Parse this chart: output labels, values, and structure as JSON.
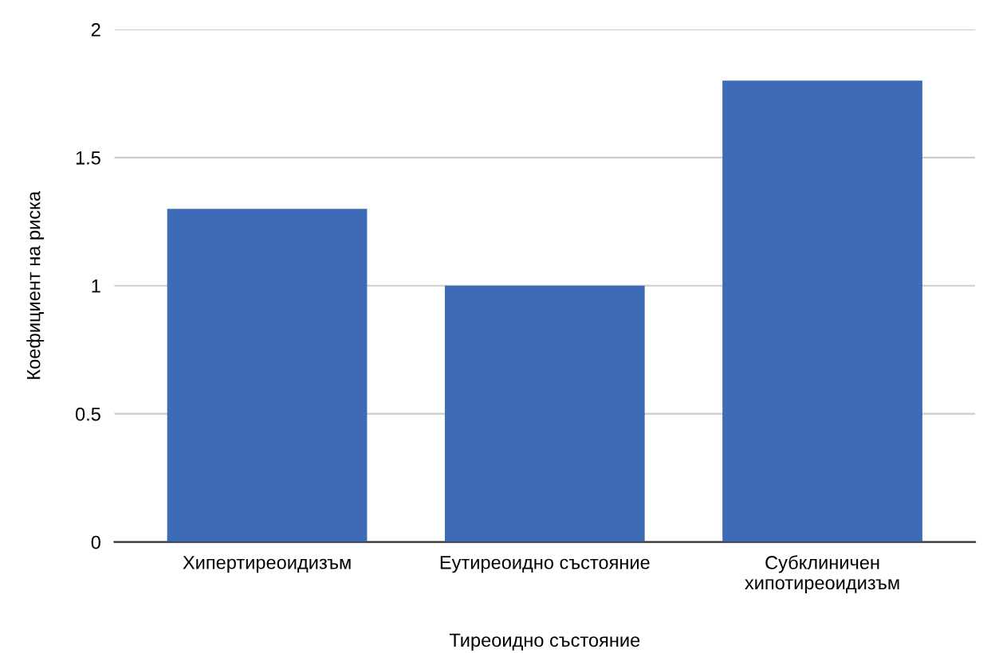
{
  "chart_data": {
    "type": "bar",
    "xlabel": "Тиреоидно състояние",
    "ylabel": "Коефициент на риска",
    "categories": [
      "Хипертиреоидизъм",
      "Еутиреоидно състояние",
      "Субклиничен\nхипотиреоидизъм"
    ],
    "values": [
      1.3,
      1.0,
      1.8
    ],
    "color": "#3d6bb5",
    "ylim": [
      0,
      2
    ],
    "yticks": [
      0,
      0.5,
      1,
      1.5,
      2
    ],
    "grid": "y"
  }
}
